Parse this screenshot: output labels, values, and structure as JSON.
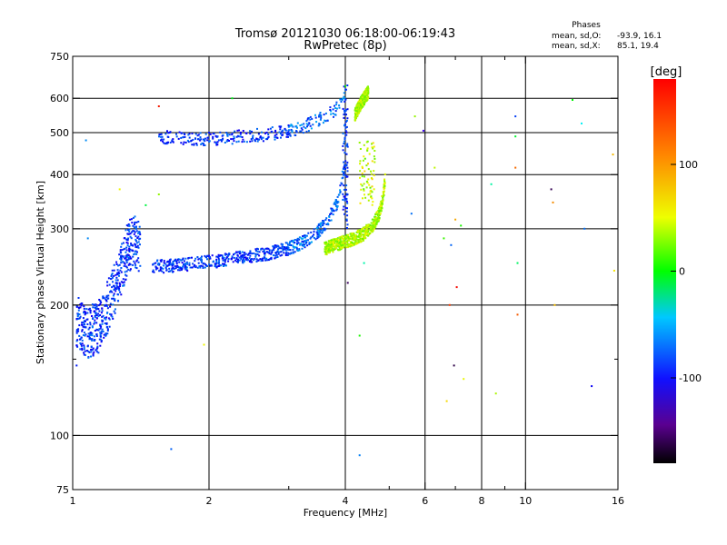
{
  "chart_data": {
    "type": "scatter",
    "title": "Tromsø 20121030 06:18:00-06:19:43",
    "subtitle": "RwPretec (8p)",
    "xlabel": "Frequency [MHz]",
    "ylabel": "Stationary phase Virtual Height [km]",
    "xscale": "log",
    "yscale": "log",
    "xlim": [
      1,
      16
    ],
    "ylim": [
      75,
      750
    ],
    "grid": true,
    "x_ticks": [
      1,
      2,
      4,
      6,
      8,
      10,
      16
    ],
    "x_tick_labels": [
      "1",
      "2",
      "4",
      "6",
      "8",
      "10",
      "16"
    ],
    "x_minor_ticks": [
      3,
      5,
      7,
      9
    ],
    "x_gridlines": [
      2,
      4,
      6,
      8,
      10
    ],
    "y_ticks": [
      75,
      100,
      200,
      300,
      400,
      500,
      600,
      750
    ],
    "y_tick_labels": [
      "75",
      "100",
      "200",
      "300",
      "400",
      "500",
      "600",
      "750"
    ],
    "y_minor_ticks": [
      150
    ],
    "y_gridlines": [
      100,
      200,
      300,
      400,
      500,
      600
    ],
    "stats": {
      "heading": "Phases",
      "o_label": "mean, sd,O:",
      "o_values": "-93.9, 16.1",
      "x_label": "mean, sd,X:",
      "x_values": "85.1, 19.4"
    },
    "colorbar": {
      "unit_label": "[deg]",
      "range": [
        -180,
        180
      ],
      "tick_values": [
        100,
        0,
        -100
      ],
      "tick_labels": [
        "100",
        "0",
        "-100"
      ],
      "colormap": "rainbow: black (-180) → purple → blue → cyan → green → yellow → orange → red (+180)"
    },
    "series": [
      {
        "mode": "O",
        "phase_mean_deg": -93.9,
        "traces": [
          {
            "part": "E/F1 spread",
            "x": [
              1.02,
              1.08,
              1.14,
              1.2,
              1.26,
              1.31,
              1.36,
              1.41
            ],
            "y": [
              185,
              172,
              178,
              200,
              230,
              262,
              285,
              270
            ]
          },
          {
            "part": "F2 lower",
            "x": [
              1.5,
              1.7,
              1.9,
              2.1,
              2.4,
              2.7,
              3.0,
              3.3,
              3.6,
              3.85,
              3.98
            ],
            "y": [
              245,
              247,
              250,
              253,
              258,
              263,
              270,
              282,
              305,
              345,
              420
            ]
          },
          {
            "part": "F2 upper",
            "x": [
              1.55,
              1.7,
              1.9,
              2.1,
              2.4,
              2.7,
              3.0,
              3.3,
              3.6,
              3.85,
              4.0
            ],
            "y": [
              490,
              485,
              482,
              485,
              490,
              495,
              505,
              520,
              545,
              570,
              610
            ]
          }
        ]
      },
      {
        "mode": "X",
        "phase_mean_deg": 85.1,
        "traces": [
          {
            "part": "F2 lower",
            "x": [
              3.6,
              3.8,
              4.0,
              4.2,
              4.4,
              4.6,
              4.75,
              4.85,
              4.9
            ],
            "y": [
              270,
              275,
              280,
              285,
              292,
              305,
              325,
              355,
              395
            ]
          },
          {
            "part": "F2 upper",
            "x": [
              4.2,
              4.35,
              4.5
            ],
            "y": [
              550,
              590,
              620
            ]
          }
        ]
      }
    ],
    "scattered_noise_points": [
      {
        "x": 1.02,
        "y": 145
      },
      {
        "x": 1.07,
        "y": 480
      },
      {
        "x": 1.08,
        "y": 285
      },
      {
        "x": 1.27,
        "y": 370
      },
      {
        "x": 1.45,
        "y": 340
      },
      {
        "x": 1.55,
        "y": 360
      },
      {
        "x": 1.55,
        "y": 575
      },
      {
        "x": 1.65,
        "y": 93
      },
      {
        "x": 1.95,
        "y": 162
      },
      {
        "x": 2.25,
        "y": 600
      },
      {
        "x": 4.0,
        "y": 640
      },
      {
        "x": 4.05,
        "y": 225
      },
      {
        "x": 4.3,
        "y": 170
      },
      {
        "x": 4.3,
        "y": 90
      },
      {
        "x": 4.4,
        "y": 250
      },
      {
        "x": 5.6,
        "y": 325
      },
      {
        "x": 5.7,
        "y": 545
      },
      {
        "x": 5.95,
        "y": 505
      },
      {
        "x": 6.3,
        "y": 415
      },
      {
        "x": 6.6,
        "y": 285
      },
      {
        "x": 6.7,
        "y": 120
      },
      {
        "x": 6.8,
        "y": 200
      },
      {
        "x": 6.85,
        "y": 275
      },
      {
        "x": 6.95,
        "y": 145
      },
      {
        "x": 7.0,
        "y": 315
      },
      {
        "x": 7.05,
        "y": 220
      },
      {
        "x": 7.2,
        "y": 305
      },
      {
        "x": 7.3,
        "y": 135
      },
      {
        "x": 8.4,
        "y": 380
      },
      {
        "x": 8.6,
        "y": 125
      },
      {
        "x": 9.5,
        "y": 545
      },
      {
        "x": 9.5,
        "y": 490
      },
      {
        "x": 9.5,
        "y": 415
      },
      {
        "x": 9.6,
        "y": 250
      },
      {
        "x": 9.6,
        "y": 190
      },
      {
        "x": 11.4,
        "y": 370
      },
      {
        "x": 11.5,
        "y": 345
      },
      {
        "x": 11.6,
        "y": 200
      },
      {
        "x": 12.7,
        "y": 595
      },
      {
        "x": 13.3,
        "y": 525
      },
      {
        "x": 13.5,
        "y": 300
      },
      {
        "x": 14.0,
        "y": 130
      },
      {
        "x": 15.6,
        "y": 445
      },
      {
        "x": 15.7,
        "y": 240
      }
    ]
  }
}
